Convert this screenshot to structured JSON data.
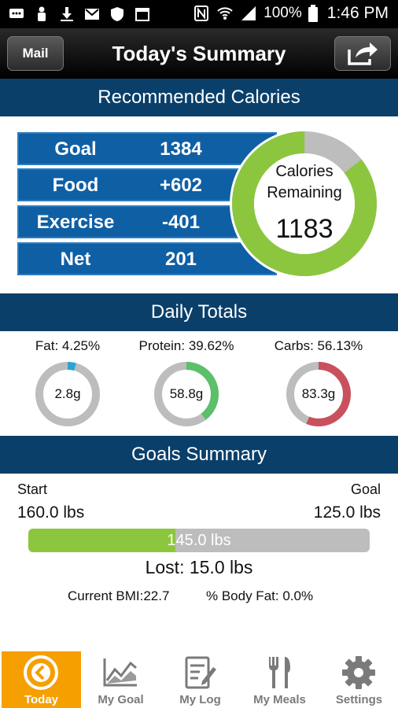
{
  "statusbar": {
    "battery": "100%",
    "time": "1:46 PM"
  },
  "header": {
    "mail_label": "Mail",
    "title": "Today's Summary"
  },
  "calories": {
    "section_title": "Recommended Calories",
    "rows": [
      {
        "label": "Goal",
        "value": "1384"
      },
      {
        "label": "Food",
        "value": "+602"
      },
      {
        "label": "Exercise",
        "value": "-401"
      },
      {
        "label": "Net",
        "value": "201"
      }
    ],
    "remaining_label_line1": "Calories",
    "remaining_label_line2": "Remaining",
    "remaining_value": "1183",
    "remaining_fraction": 0.855,
    "colors": {
      "ring_green": "#8cc63f",
      "ring_gray": "#bdbdbd"
    }
  },
  "daily_totals": {
    "section_title": "Daily Totals",
    "macros": [
      {
        "label": "Fat: 4.25%",
        "value": "2.8g",
        "fraction": 0.0425,
        "color": "#29a3d6"
      },
      {
        "label": "Protein: 39.62%",
        "value": "58.8g",
        "fraction": 0.3962,
        "color": "#5cbf6a"
      },
      {
        "label": "Carbs: 56.13%",
        "value": "83.3g",
        "fraction": 0.5613,
        "color": "#c9515e"
      }
    ]
  },
  "goals": {
    "section_title": "Goals Summary",
    "start_label": "Start",
    "start_value": "160.0 lbs",
    "goal_label": "Goal",
    "goal_value": "125.0 lbs",
    "current_value": "145.0 lbs",
    "progress_fraction": 0.43,
    "lost_text": "Lost: 15.0 lbs",
    "bmi_text": "Current BMI:22.7",
    "body_fat_text": "% Body Fat: 0.0%"
  },
  "tabs": [
    {
      "label": "Today",
      "icon": "today-icon",
      "active": true
    },
    {
      "label": "My Goal",
      "icon": "chart-icon",
      "active": false
    },
    {
      "label": "My Log",
      "icon": "log-icon",
      "active": false
    },
    {
      "label": "My Meals",
      "icon": "fork-knife-icon",
      "active": false
    },
    {
      "label": "Settings",
      "icon": "gear-icon",
      "active": false
    }
  ]
}
